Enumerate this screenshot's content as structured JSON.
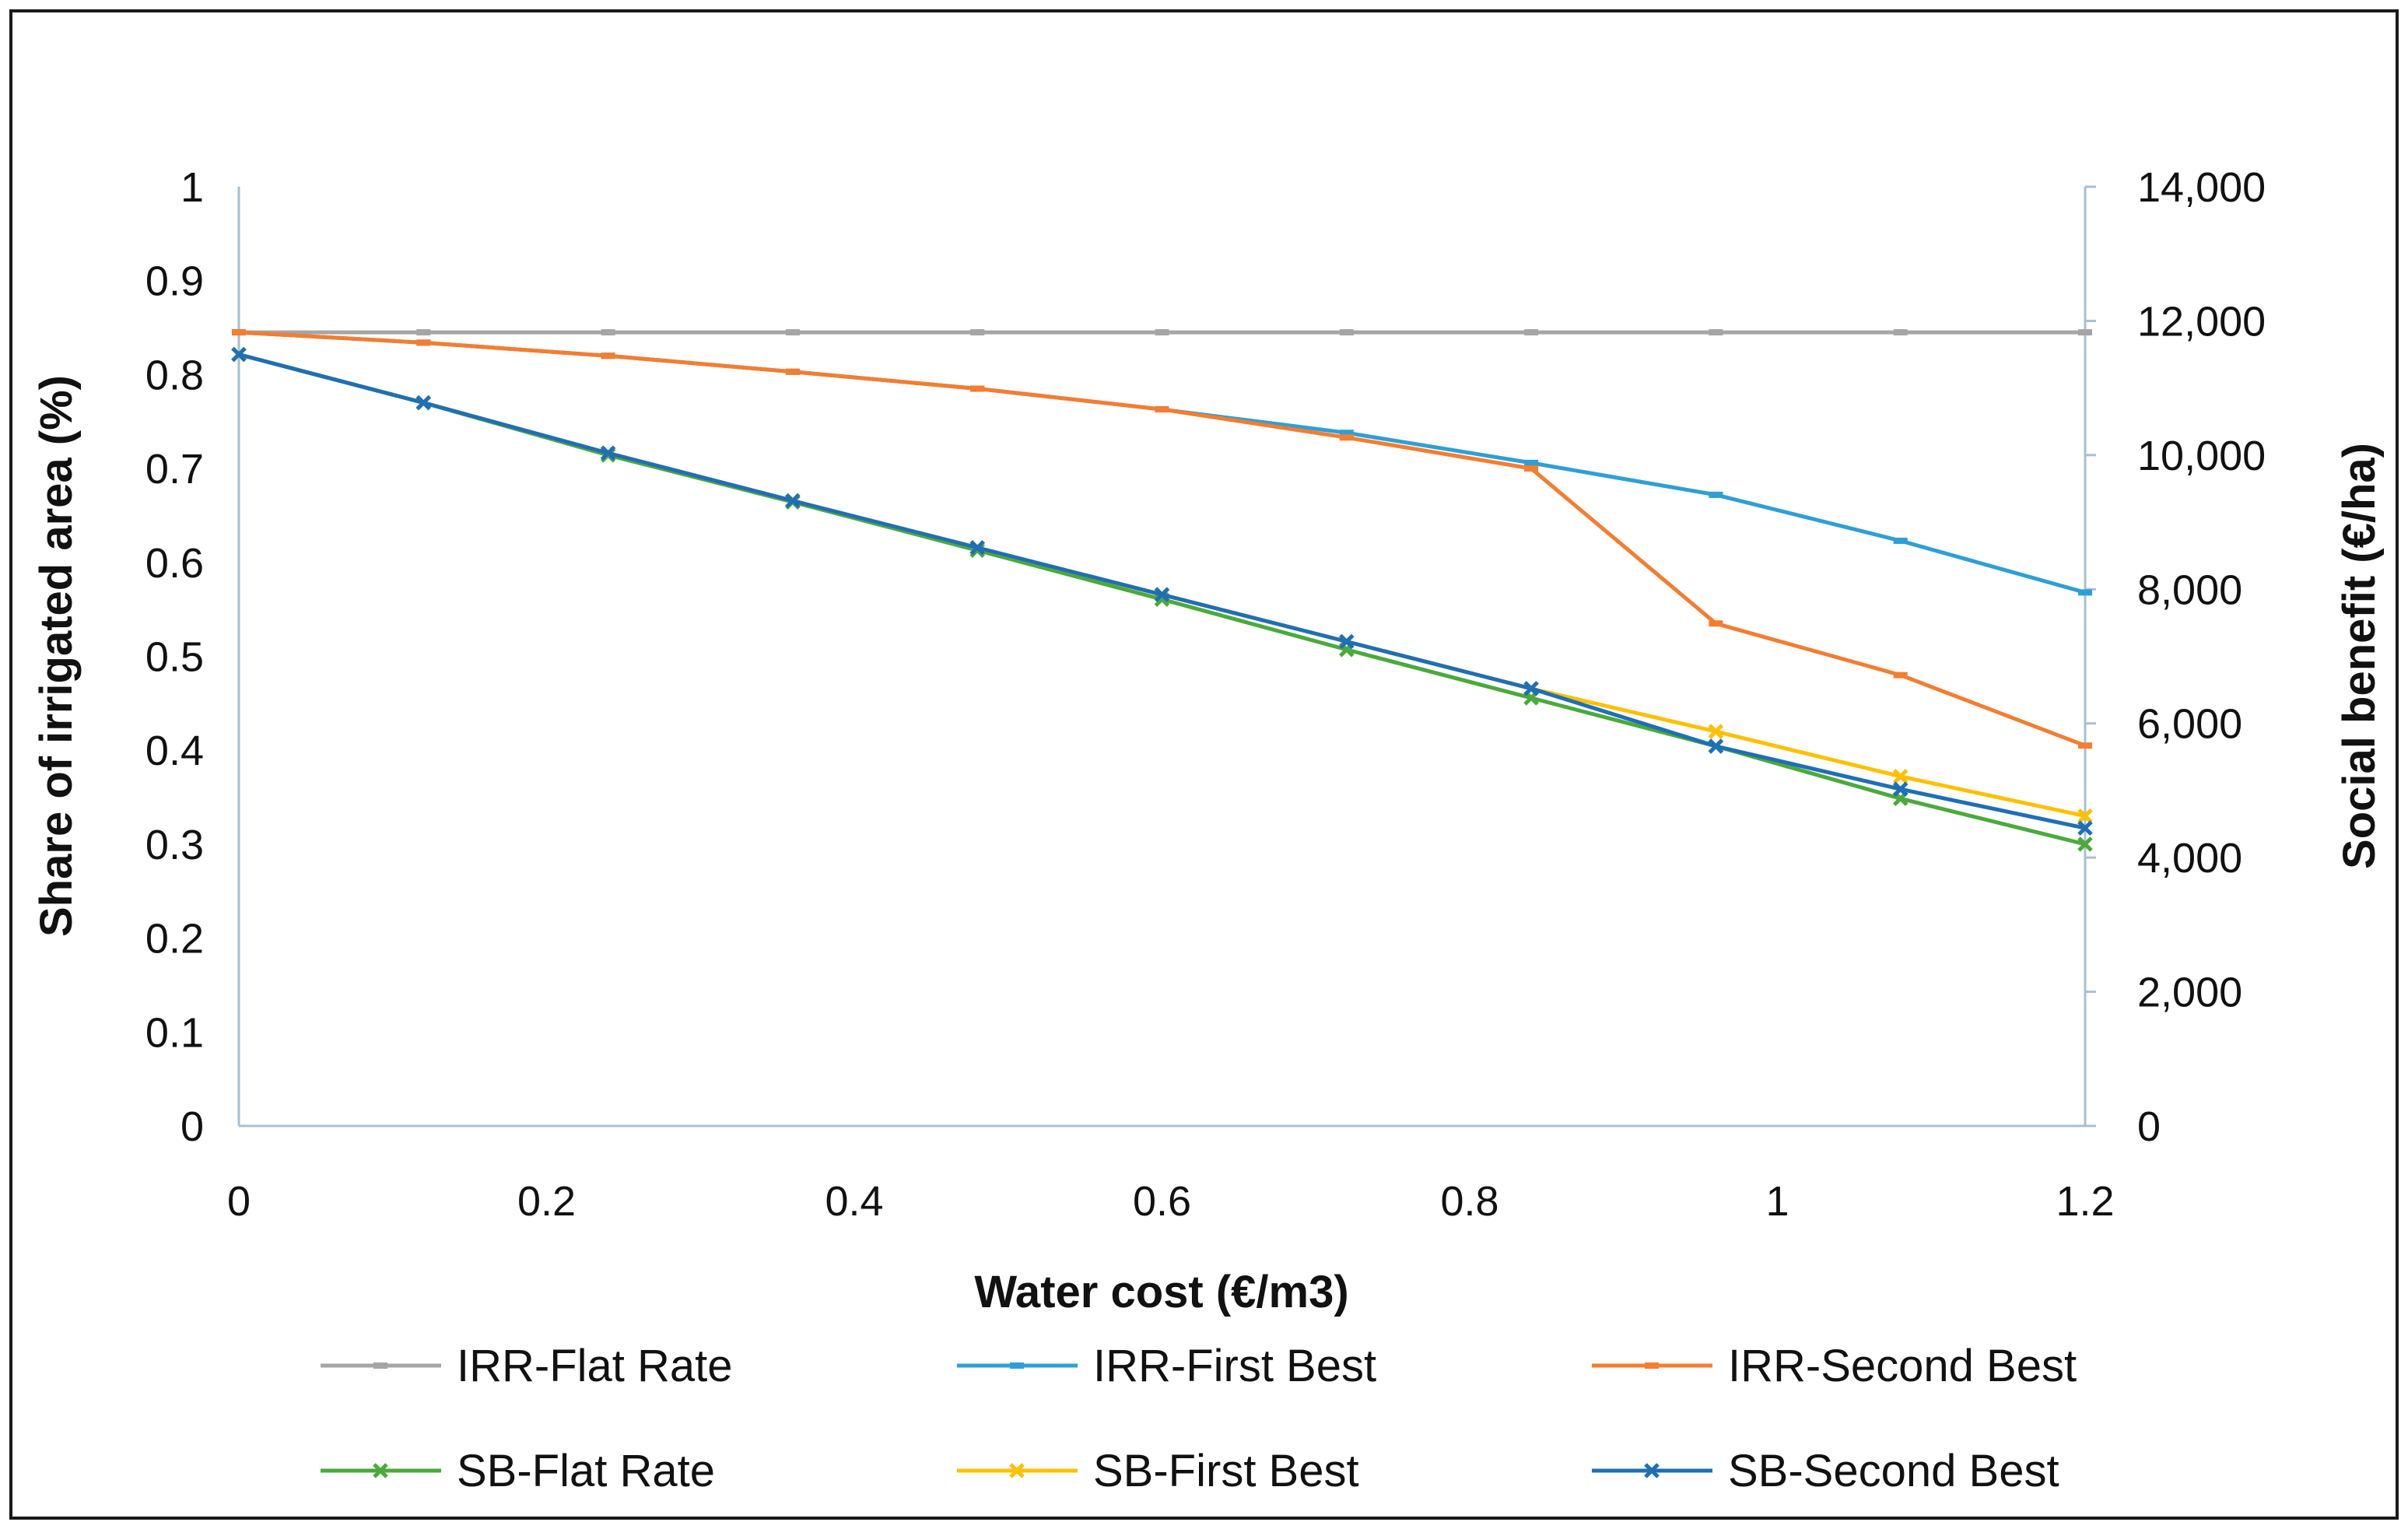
{
  "chart_data": {
    "type": "line",
    "title": "",
    "xlabel": "Water cost (€/m3)",
    "ylabel": "Share of irrigated area (%)",
    "y2label": "Social benefit (€/ha)",
    "x": [
      0,
      0.12,
      0.24,
      0.36,
      0.48,
      0.6,
      0.72,
      0.84,
      0.96,
      1.08,
      1.2
    ],
    "xlim": [
      0,
      1.2
    ],
    "ylim": [
      0,
      1
    ],
    "y2lim": [
      0,
      14000
    ],
    "xticks": [
      "0",
      "0.2",
      "0.4",
      "0.6",
      "0.8",
      "1",
      "1.2"
    ],
    "xtick_values": [
      0,
      0.2,
      0.4,
      0.6,
      0.8,
      1,
      1.2
    ],
    "yticks": [
      "0",
      "0.1",
      "0.2",
      "0.3",
      "0.4",
      "0.5",
      "0.6",
      "0.7",
      "0.8",
      "0.9",
      "1"
    ],
    "ytick_values": [
      0,
      0.1,
      0.2,
      0.3,
      0.4,
      0.5,
      0.6,
      0.7,
      0.8,
      0.9,
      1
    ],
    "y2ticks": [
      "0",
      "2,000",
      "4,000",
      "6,000",
      "8,000",
      "10,000",
      "12,000",
      "14,000"
    ],
    "y2tick_values": [
      0,
      2000,
      4000,
      6000,
      8000,
      10000,
      12000,
      14000
    ],
    "grid": false,
    "legend_position": "bottom",
    "series": [
      {
        "name": "IRR-Flat Rate",
        "axis": "left",
        "color": "#a5a5a5",
        "marker": "dash",
        "values": [
          0.845,
          0.845,
          0.845,
          0.845,
          0.845,
          0.845,
          0.845,
          0.845,
          0.845,
          0.845,
          0.845
        ]
      },
      {
        "name": "IRR-First Best",
        "axis": "left",
        "color": "#2e9fd6",
        "marker": "dash",
        "values": [
          0.845,
          0.834,
          0.82,
          0.803,
          0.785,
          0.763,
          0.738,
          0.706,
          0.672,
          0.623,
          0.568
        ]
      },
      {
        "name": "IRR-Second Best",
        "axis": "left",
        "color": "#f47d30",
        "marker": "dash",
        "values": [
          0.845,
          0.834,
          0.82,
          0.803,
          0.785,
          0.763,
          0.733,
          0.7,
          0.535,
          0.48,
          0.405
        ]
      },
      {
        "name": "SB-Flat Rate",
        "axis": "right",
        "color": "#4aaa3a",
        "marker": "x",
        "values": [
          11500,
          10780,
          10000,
          9300,
          8580,
          7850,
          7100,
          6380,
          5660,
          4880,
          4200
        ]
      },
      {
        "name": "SB-First Best",
        "axis": "right",
        "color": "#ffc000",
        "marker": "x",
        "values": [
          11500,
          10780,
          10030,
          9320,
          8620,
          7920,
          7220,
          6520,
          5880,
          5210,
          4620
        ]
      },
      {
        "name": "SB-Second Best",
        "axis": "right",
        "color": "#1f6fb5",
        "marker": "x",
        "values": [
          11500,
          10780,
          10030,
          9320,
          8620,
          7920,
          7220,
          6520,
          5660,
          5020,
          4440
        ]
      }
    ]
  }
}
